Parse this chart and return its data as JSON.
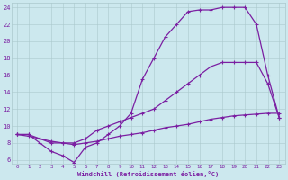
{
  "xlabel": "Windchill (Refroidissement éolien,°C)",
  "xlim": [
    -0.5,
    23.5
  ],
  "ylim": [
    5.5,
    24.5
  ],
  "xticks": [
    0,
    1,
    2,
    3,
    4,
    5,
    6,
    7,
    8,
    9,
    10,
    11,
    12,
    13,
    14,
    15,
    16,
    17,
    18,
    19,
    20,
    21,
    22,
    23
  ],
  "yticks": [
    6,
    8,
    10,
    12,
    14,
    16,
    18,
    20,
    22,
    24
  ],
  "bg_color": "#cce8ee",
  "line_color": "#7b1fa2",
  "line1_x": [
    0,
    1,
    2,
    3,
    4,
    5,
    6,
    7,
    8,
    9,
    10,
    11,
    12,
    13,
    14,
    15,
    16,
    17,
    18,
    19,
    20,
    21,
    22,
    23
  ],
  "line1_y": [
    9,
    9,
    8,
    7,
    6.5,
    5.7,
    7.5,
    8.0,
    9.0,
    10.0,
    11.5,
    15.5,
    18.0,
    20.5,
    22.0,
    23.5,
    23.7,
    23.7,
    24.0,
    24.0,
    24.0,
    22.0,
    16.0,
    11.0
  ],
  "line2_x": [
    0,
    1,
    2,
    3,
    4,
    5,
    6,
    7,
    8,
    9,
    10,
    11,
    12,
    13,
    14,
    15,
    16,
    17,
    18,
    19,
    20,
    21,
    22,
    23
  ],
  "line2_y": [
    9,
    9,
    8.5,
    8.0,
    8.0,
    8.0,
    8.5,
    9.5,
    10.0,
    10.5,
    11.0,
    11.5,
    12.0,
    13.0,
    14.0,
    15.0,
    16.0,
    17.0,
    17.5,
    17.5,
    17.5,
    17.5,
    15.0,
    11.0
  ],
  "line3_x": [
    0,
    1,
    2,
    3,
    4,
    5,
    6,
    7,
    8,
    9,
    10,
    11,
    12,
    13,
    14,
    15,
    16,
    17,
    18,
    19,
    20,
    21,
    22,
    23
  ],
  "line3_y": [
    9,
    8.8,
    8.5,
    8.2,
    8.0,
    7.8,
    8.0,
    8.2,
    8.5,
    8.8,
    9.0,
    9.2,
    9.5,
    9.8,
    10.0,
    10.2,
    10.5,
    10.8,
    11.0,
    11.2,
    11.3,
    11.4,
    11.5,
    11.5
  ],
  "grid_color": "#aac8cc",
  "font_color": "#7b1fa2"
}
